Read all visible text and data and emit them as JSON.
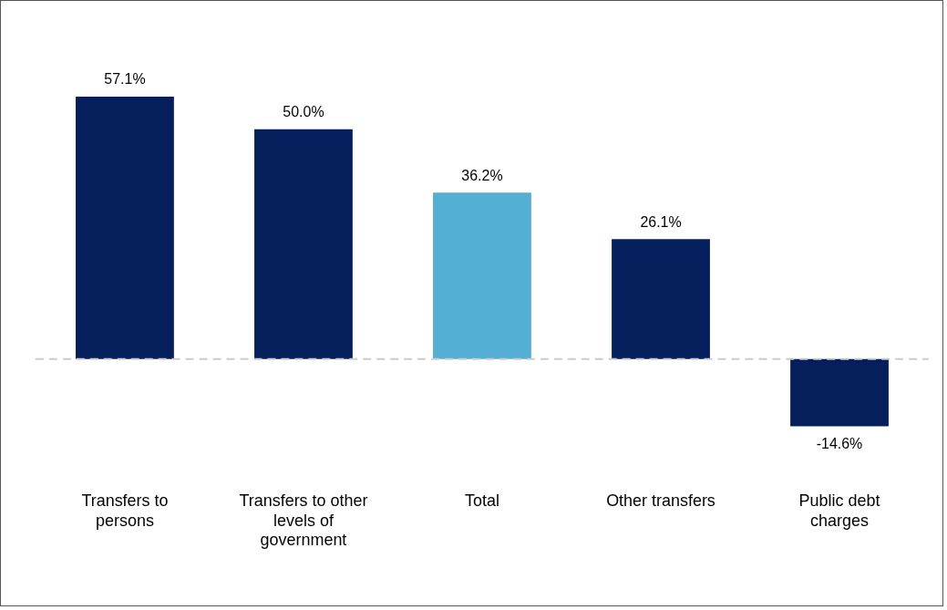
{
  "chart_data": {
    "type": "bar",
    "categories": [
      "Transfers to persons",
      "Transfers to other levels of government",
      "Total",
      "Other transfers",
      "Public debt charges"
    ],
    "values": [
      57.1,
      50.0,
      36.2,
      26.1,
      -14.6
    ],
    "colors": [
      "#041f5c",
      "#041f5c",
      "#53afd3",
      "#041f5c",
      "#041f5c"
    ],
    "value_labels": [
      "57.1%",
      "50.0%",
      "36.2%",
      "26.1%",
      "-14.6%"
    ],
    "ref_lines": [
      {
        "axis": "y",
        "value": 0,
        "color": "#cccccc",
        "line_style": "dashed"
      }
    ],
    "grid": false,
    "legend": false
  }
}
